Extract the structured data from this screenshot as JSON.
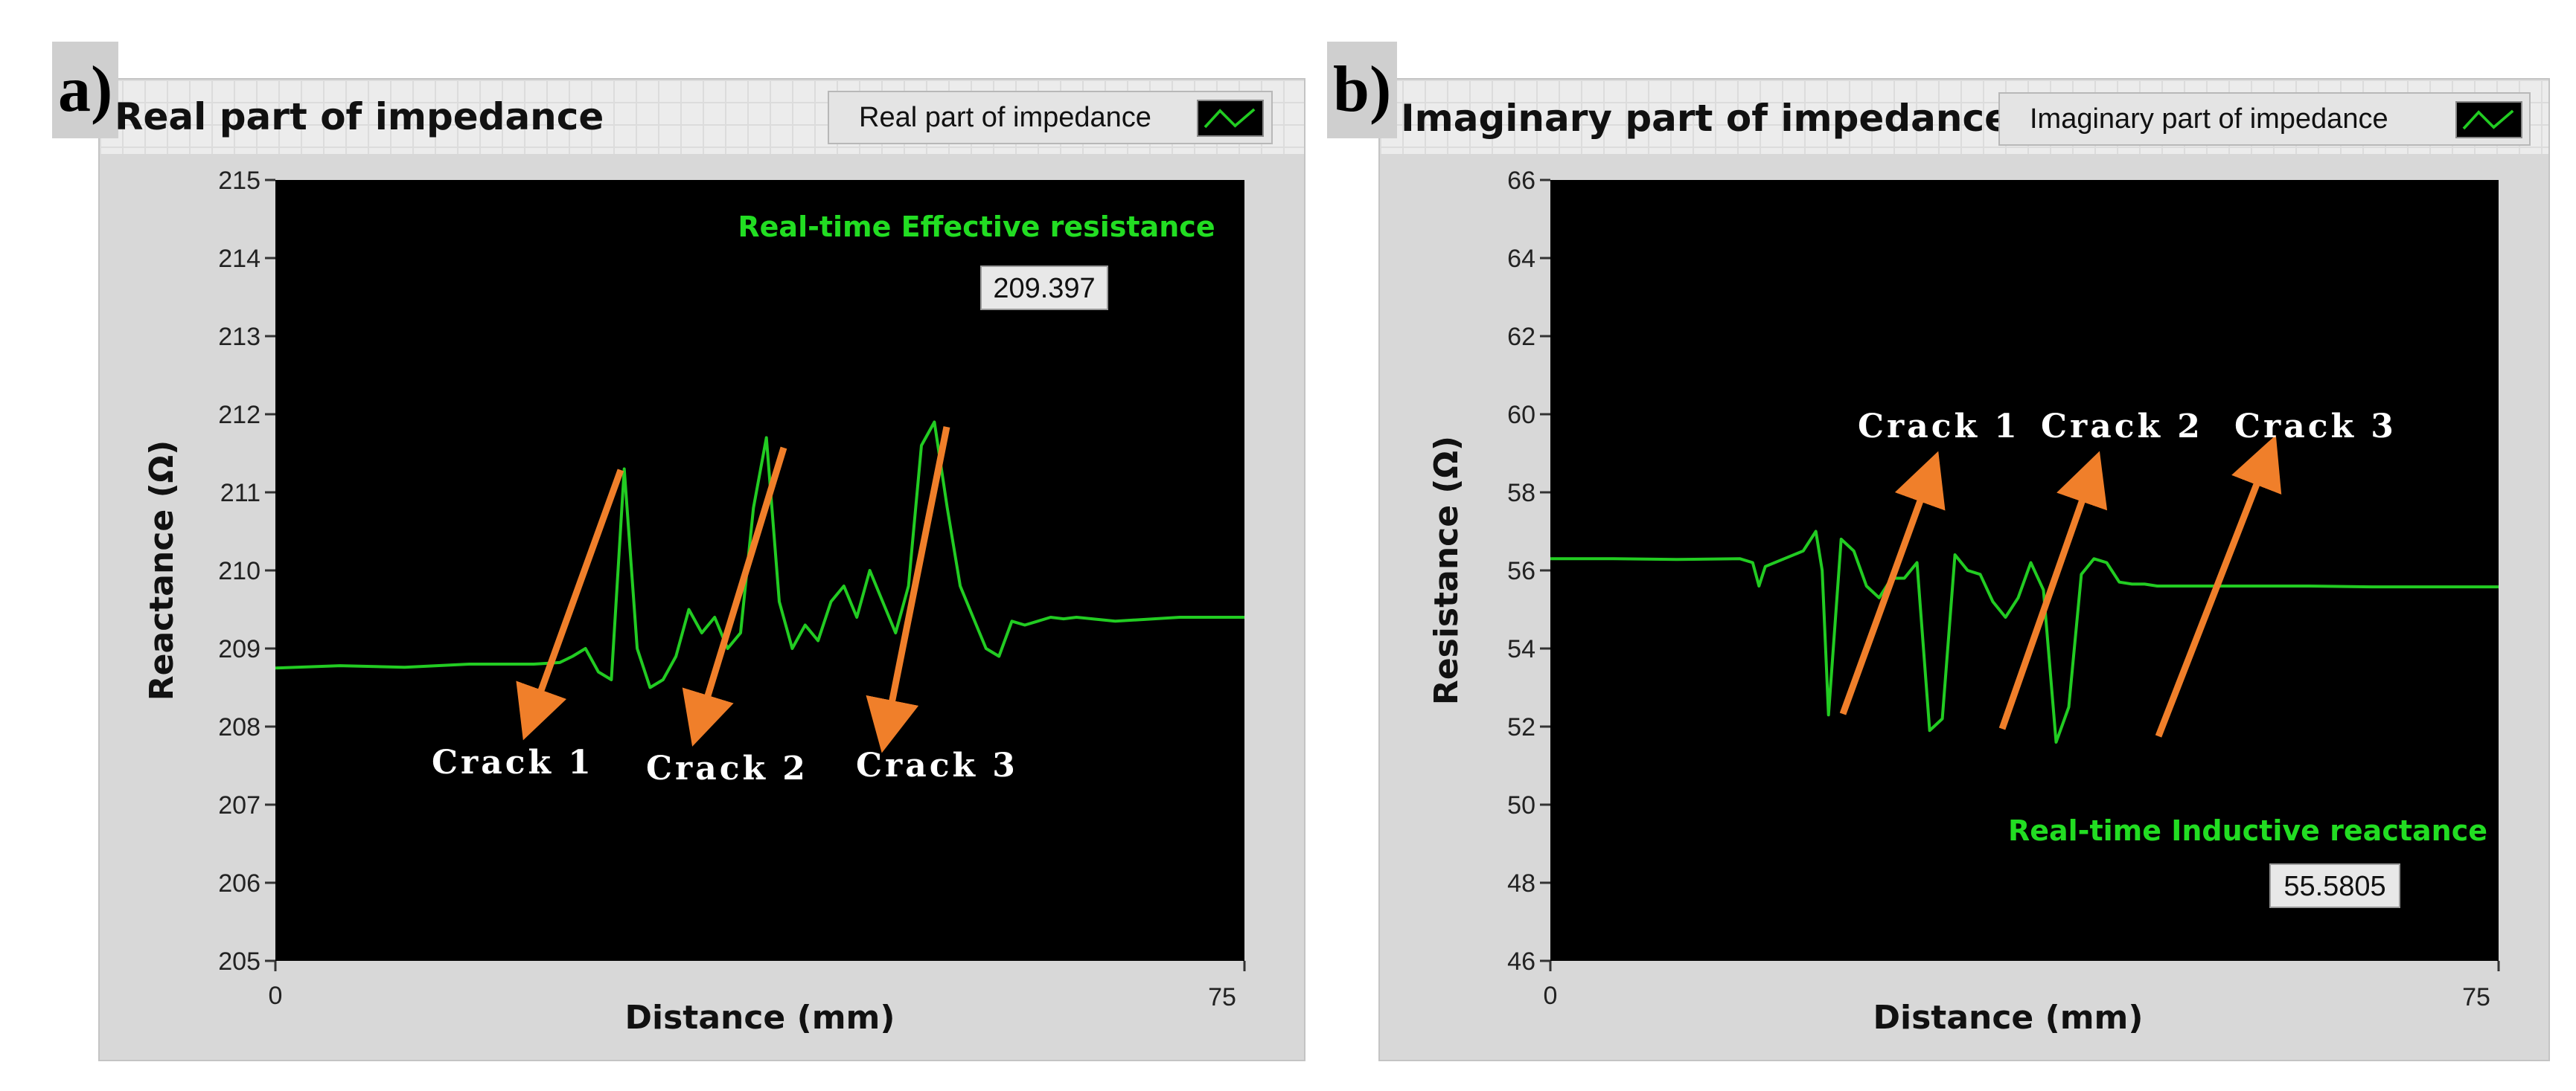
{
  "panels": [
    {
      "tag": "a)",
      "title": "Real part of impedance",
      "legend": "Real part of impedance"
    },
    {
      "tag": "b)",
      "title": "Imaginary part of impedance",
      "legend": "Imaginary part of impedance"
    }
  ],
  "colors": {
    "trace": "#22cc22",
    "arrow": "#f07f2a",
    "plot_bg": "#000000"
  },
  "chart_data": [
    {
      "type": "line",
      "title": "Real part of impedance",
      "series": [
        {
          "name": "Real part of impedance",
          "x": [
            0,
            5,
            10,
            15,
            20,
            22,
            23,
            24,
            25,
            26,
            27,
            28,
            29,
            30,
            31,
            32,
            33,
            34,
            35,
            36,
            37,
            38,
            39,
            40,
            41,
            42,
            43,
            44,
            45,
            46,
            47,
            48,
            49,
            50,
            51,
            52,
            53,
            54,
            55,
            56,
            57,
            58,
            59,
            60,
            61,
            62,
            65,
            70,
            75
          ],
          "y": [
            208.75,
            208.78,
            208.76,
            208.8,
            208.8,
            208.82,
            208.9,
            209.0,
            208.7,
            208.6,
            211.3,
            209.0,
            208.5,
            208.6,
            208.9,
            209.5,
            209.2,
            209.4,
            209.0,
            209.2,
            210.8,
            211.7,
            209.6,
            209.0,
            209.3,
            209.1,
            209.6,
            209.8,
            209.4,
            210.0,
            209.6,
            209.2,
            209.8,
            211.6,
            211.9,
            210.8,
            209.8,
            209.4,
            209.0,
            208.9,
            209.35,
            209.3,
            209.35,
            209.4,
            209.38,
            209.4,
            209.35,
            209.4,
            209.4
          ]
        }
      ],
      "xlabel": "Distance (mm)",
      "ylabel": "Reactance (Ω)",
      "xlim": [
        0,
        75
      ],
      "ylim": [
        205,
        215
      ],
      "yticks": [
        "205",
        "206",
        "207",
        "208",
        "209",
        "210",
        "211",
        "212",
        "213",
        "214",
        "215"
      ],
      "xticks": [
        "0",
        "75"
      ],
      "annotation": "Real-time Effective resistance",
      "readout": "209.397",
      "cracks": [
        "Crack 1",
        "Crack 2",
        "Crack 3"
      ]
    },
    {
      "type": "line",
      "title": "Imaginary part of impedance",
      "series": [
        {
          "name": "Imaginary part of impedance",
          "x": [
            0,
            5,
            10,
            15,
            16,
            16.5,
            17,
            20,
            21,
            21.5,
            22,
            23,
            24,
            25,
            26,
            27,
            28,
            29,
            30,
            31,
            32,
            33,
            34,
            35,
            36,
            37,
            38,
            39,
            40,
            41,
            42,
            43,
            44,
            45,
            46,
            47,
            48,
            50,
            55,
            60,
            65,
            70,
            75
          ],
          "y": [
            56.3,
            56.3,
            56.28,
            56.3,
            56.2,
            55.6,
            56.1,
            56.5,
            57.0,
            56.0,
            52.3,
            56.8,
            56.5,
            55.6,
            55.3,
            55.8,
            55.8,
            56.2,
            51.9,
            52.2,
            56.4,
            56.0,
            55.9,
            55.2,
            54.8,
            55.3,
            56.2,
            55.5,
            51.6,
            52.5,
            55.9,
            56.3,
            56.2,
            55.7,
            55.65,
            55.65,
            55.6,
            55.6,
            55.6,
            55.6,
            55.58,
            55.58,
            55.58
          ]
        }
      ],
      "xlabel": "Distance (mm)",
      "ylabel": "Resistance (Ω)",
      "xlim": [
        0,
        75
      ],
      "ylim": [
        46,
        66
      ],
      "yticks": [
        "46",
        "48",
        "50",
        "52",
        "54",
        "56",
        "58",
        "60",
        "62",
        "64",
        "66"
      ],
      "xticks": [
        "0",
        "75"
      ],
      "annotation": "Real-time Inductive reactance",
      "readout": "55.5805",
      "cracks": [
        "Crack 1",
        "Crack 2",
        "Crack 3"
      ]
    }
  ]
}
